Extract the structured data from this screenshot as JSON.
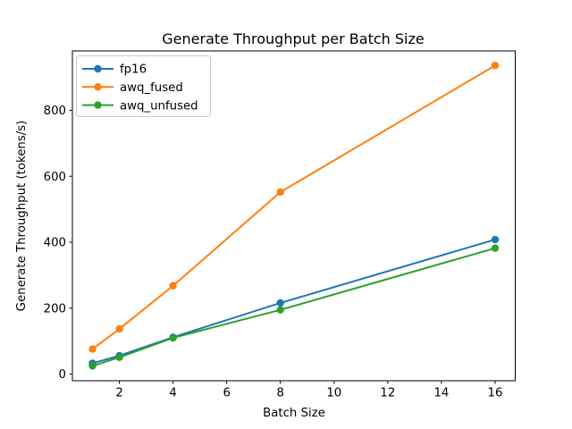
{
  "figure": {
    "background": "#ffffff"
  },
  "chart_data": {
    "type": "line",
    "title": "Generate Throughput per Batch Size",
    "xlabel": "Batch Size",
    "ylabel": "Generate Throughput (tokens/s)",
    "x": [
      1,
      2,
      4,
      8,
      16
    ],
    "series": [
      {
        "name": "fp16",
        "color": "#1f77b4",
        "values": [
          33,
          56,
          112,
          216,
          408
        ]
      },
      {
        "name": "awq_fused",
        "color": "#ff7f0e",
        "values": [
          76,
          137,
          268,
          552,
          936
        ]
      },
      {
        "name": "awq_unfused",
        "color": "#2ca02c",
        "values": [
          25,
          51,
          110,
          195,
          382
        ]
      }
    ],
    "xlim": [
      0.25,
      16.75
    ],
    "ylim": [
      -20,
      980
    ],
    "xticks": [
      2,
      4,
      6,
      8,
      10,
      12,
      14,
      16
    ],
    "yticks": [
      0,
      200,
      400,
      600,
      800
    ],
    "grid": false,
    "marker": "o",
    "legend_position": "upper left",
    "text_color": "#000000",
    "spine_color": "#000000",
    "legend_border_color": "#cccccc",
    "legend_background": "#ffffff"
  }
}
